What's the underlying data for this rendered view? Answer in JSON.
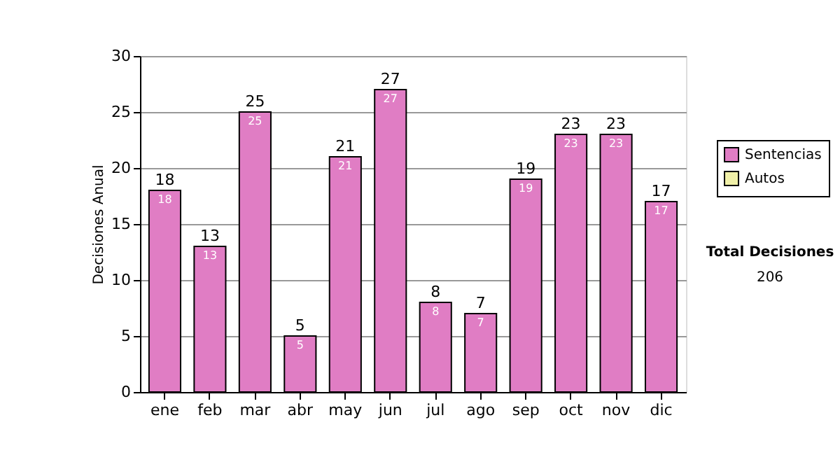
{
  "chart_data": {
    "type": "bar",
    "ylabel": "Decisiones Anual",
    "categories": [
      "ene",
      "feb",
      "mar",
      "abr",
      "may",
      "jun",
      "jul",
      "ago",
      "sep",
      "oct",
      "nov",
      "dic"
    ],
    "series": [
      {
        "name": "Sentencias",
        "color": "#e07dc4",
        "values": [
          18,
          13,
          25,
          5,
          21,
          27,
          8,
          7,
          19,
          23,
          23,
          17
        ]
      },
      {
        "name": "Autos",
        "color": "#f0f0a8",
        "values": [
          null,
          null,
          null,
          null,
          null,
          null,
          null,
          null,
          null,
          null,
          null,
          null
        ]
      }
    ],
    "ylim": [
      0,
      30
    ],
    "yticks": [
      0,
      5,
      10,
      15,
      20,
      25,
      30
    ],
    "grid": "y",
    "legend": "right",
    "data_labels": true,
    "annotations": [
      "Total Decisiones",
      "206",
      {
        "text": "18",
        "x": "ene",
        "y": 18
      },
      {
        "text": "13",
        "x": "feb",
        "y": 13
      },
      {
        "text": "25",
        "x": "mar",
        "y": 25
      },
      {
        "text": "5",
        "x": "abr",
        "y": 5
      },
      {
        "text": "21",
        "x": "may",
        "y": 21
      },
      {
        "text": "27",
        "x": "jun",
        "y": 27
      },
      {
        "text": "8",
        "x": "jul",
        "y": 8
      },
      {
        "text": "7",
        "x": "ago",
        "y": 7
      },
      {
        "text": "19",
        "x": "sep",
        "y": 19
      },
      {
        "text": "23",
        "x": "oct",
        "y": 23
      },
      {
        "text": "23",
        "x": "nov",
        "y": 23
      },
      {
        "text": "17",
        "x": "dic",
        "y": 17
      }
    ]
  }
}
